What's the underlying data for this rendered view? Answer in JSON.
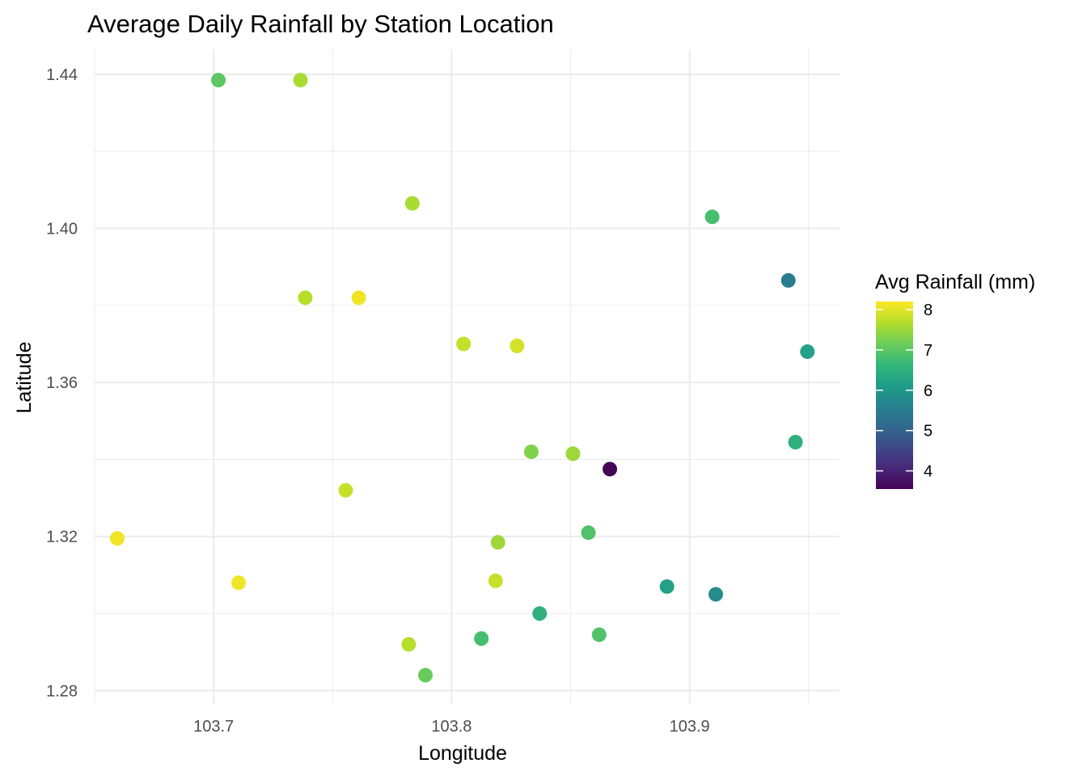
{
  "chart_data": {
    "type": "scatter",
    "title": "Average Daily Rainfall by Station Location",
    "xlabel": "Longitude",
    "ylabel": "Latitude",
    "xlim": [
      103.65,
      103.963
    ],
    "ylim": [
      1.2765,
      1.4465
    ],
    "x_ticks": [
      103.7,
      103.8,
      103.9
    ],
    "x_tick_labels": [
      "103.7",
      "103.8",
      "103.9"
    ],
    "y_ticks": [
      1.28,
      1.32,
      1.36,
      1.4,
      1.44
    ],
    "y_tick_labels": [
      "1.28",
      "1.32",
      "1.36",
      "1.40",
      "1.44"
    ],
    "grid": true,
    "color_scale": "viridis",
    "legend": {
      "title": "Avg Rainfall (mm)",
      "placement": "right",
      "range": [
        3.55,
        8.2
      ],
      "ticks": [
        4,
        5,
        6,
        7,
        8
      ],
      "tick_labels": [
        "4",
        "5",
        "6",
        "7",
        "8"
      ]
    },
    "points": [
      {
        "x": 103.702,
        "y": 1.4385,
        "value": 7.0
      },
      {
        "x": 103.7365,
        "y": 1.4385,
        "value": 7.6
      },
      {
        "x": 103.7835,
        "y": 1.4065,
        "value": 7.6
      },
      {
        "x": 103.9095,
        "y": 1.403,
        "value": 6.8
      },
      {
        "x": 103.9415,
        "y": 1.3865,
        "value": 5.5
      },
      {
        "x": 103.7385,
        "y": 1.382,
        "value": 7.7
      },
      {
        "x": 103.761,
        "y": 1.382,
        "value": 8.1
      },
      {
        "x": 103.805,
        "y": 1.37,
        "value": 7.8
      },
      {
        "x": 103.8275,
        "y": 1.3695,
        "value": 7.9
      },
      {
        "x": 103.9495,
        "y": 1.368,
        "value": 6.2
      },
      {
        "x": 103.9445,
        "y": 1.3445,
        "value": 6.5
      },
      {
        "x": 103.8335,
        "y": 1.342,
        "value": 7.3
      },
      {
        "x": 103.851,
        "y": 1.3415,
        "value": 7.5
      },
      {
        "x": 103.8665,
        "y": 1.3375,
        "value": 3.6
      },
      {
        "x": 103.7555,
        "y": 1.332,
        "value": 7.8
      },
      {
        "x": 103.6595,
        "y": 1.3195,
        "value": 8.1
      },
      {
        "x": 103.8575,
        "y": 1.321,
        "value": 6.9
      },
      {
        "x": 103.8195,
        "y": 1.3185,
        "value": 7.5
      },
      {
        "x": 103.7105,
        "y": 1.308,
        "value": 8.1
      },
      {
        "x": 103.8185,
        "y": 1.3085,
        "value": 7.8
      },
      {
        "x": 103.8905,
        "y": 1.307,
        "value": 6.2
      },
      {
        "x": 103.911,
        "y": 1.305,
        "value": 5.8
      },
      {
        "x": 103.837,
        "y": 1.3,
        "value": 6.5
      },
      {
        "x": 103.862,
        "y": 1.2945,
        "value": 6.9
      },
      {
        "x": 103.8125,
        "y": 1.2935,
        "value": 6.8
      },
      {
        "x": 103.782,
        "y": 1.292,
        "value": 7.7
      },
      {
        "x": 103.789,
        "y": 1.284,
        "value": 7.1
      }
    ]
  }
}
